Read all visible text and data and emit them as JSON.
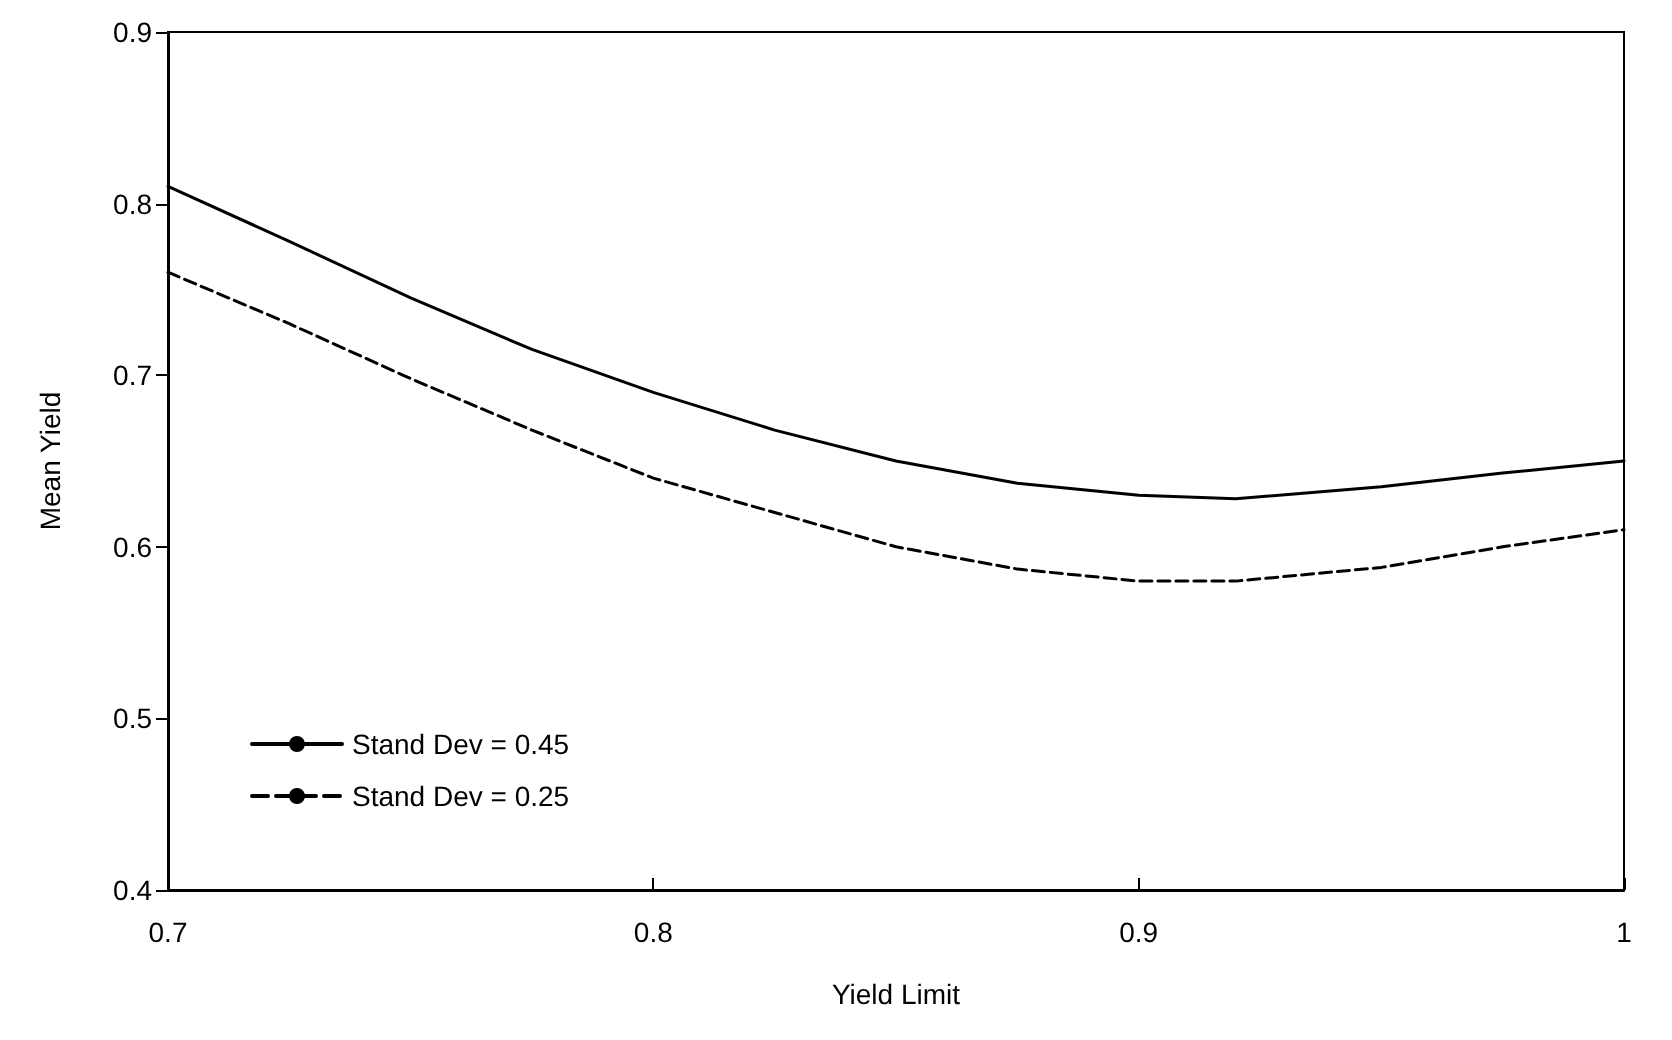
{
  "chart_data": {
    "type": "line",
    "xlabel": "Yield Limit",
    "ylabel": "Mean Yield",
    "x": [
      0.7,
      0.725,
      0.75,
      0.775,
      0.8,
      0.825,
      0.85,
      0.875,
      0.9,
      0.92,
      0.95,
      0.975,
      1.0
    ],
    "series": [
      {
        "name": "Stand Dev = 0.45",
        "color": "#000000",
        "line_style": "solid",
        "values": [
          0.81,
          0.778,
          0.745,
          0.715,
          0.69,
          0.668,
          0.65,
          0.637,
          0.63,
          0.628,
          0.635,
          0.643,
          0.65
        ]
      },
      {
        "name": "Stand Dev = 0.25",
        "color": "#000000",
        "line_style": "dashed",
        "values": [
          0.76,
          0.73,
          0.698,
          0.668,
          0.64,
          0.62,
          0.6,
          0.587,
          0.58,
          0.58,
          0.588,
          0.6,
          0.61
        ]
      }
    ],
    "xlim": [
      0.7,
      1.0
    ],
    "xticks": [
      0.7,
      0.8,
      0.9,
      1
    ],
    "ylim": [
      0.4,
      0.9
    ],
    "yticks": [
      0.4,
      0.5,
      0.6,
      0.7,
      0.8,
      0.9
    ],
    "grid": false,
    "legend": "bottom left",
    "marker": "none"
  }
}
